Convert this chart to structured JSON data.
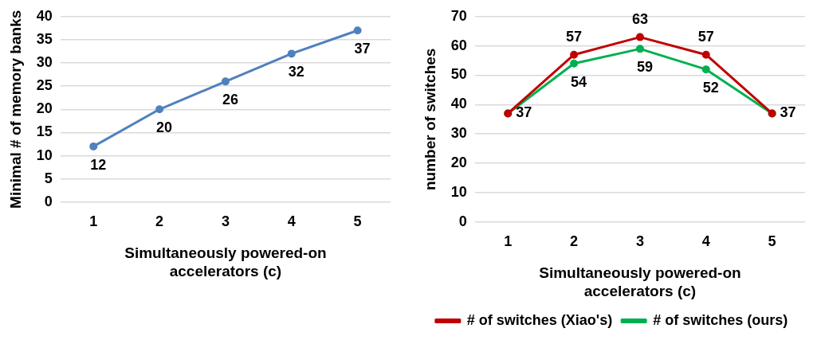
{
  "chart_data": [
    {
      "type": "line",
      "categories": [
        "1",
        "2",
        "3",
        "4",
        "5"
      ],
      "xlabel": "Simultaneously powered-on accelerators (c)",
      "ylabel": "Minimal # of memory banks",
      "ylim": [
        0,
        40
      ],
      "yticks": [
        0,
        5,
        10,
        15,
        20,
        25,
        30,
        35,
        40
      ],
      "grid": "y",
      "marker": "circle",
      "legend": false,
      "data_labels": true,
      "series": [
        {
          "color": "#4f81bd",
          "values": [
            12,
            20,
            26,
            32,
            37
          ]
        }
      ]
    },
    {
      "type": "line",
      "categories": [
        "1",
        "2",
        "3",
        "4",
        "5"
      ],
      "xlabel": "Simultaneously powered-on accelerators (c)",
      "ylabel": "number of switches",
      "ylim": [
        0,
        70
      ],
      "yticks": [
        0,
        10,
        20,
        30,
        40,
        50,
        60,
        70
      ],
      "grid": "y",
      "marker": "circle",
      "legend": "bottom",
      "series": [
        {
          "name": "# of switches (Xiao's)",
          "color": "#c00000",
          "values": [
            37,
            57,
            63,
            57,
            37
          ],
          "value_labels": [
            null,
            "57",
            "63",
            "57",
            null
          ]
        },
        {
          "name": "# of switches (ours)",
          "color": "#00b050",
          "values": [
            37,
            54,
            59,
            52,
            37
          ],
          "value_labels": [
            "37",
            "54",
            "59",
            "52",
            "37"
          ]
        }
      ]
    }
  ]
}
